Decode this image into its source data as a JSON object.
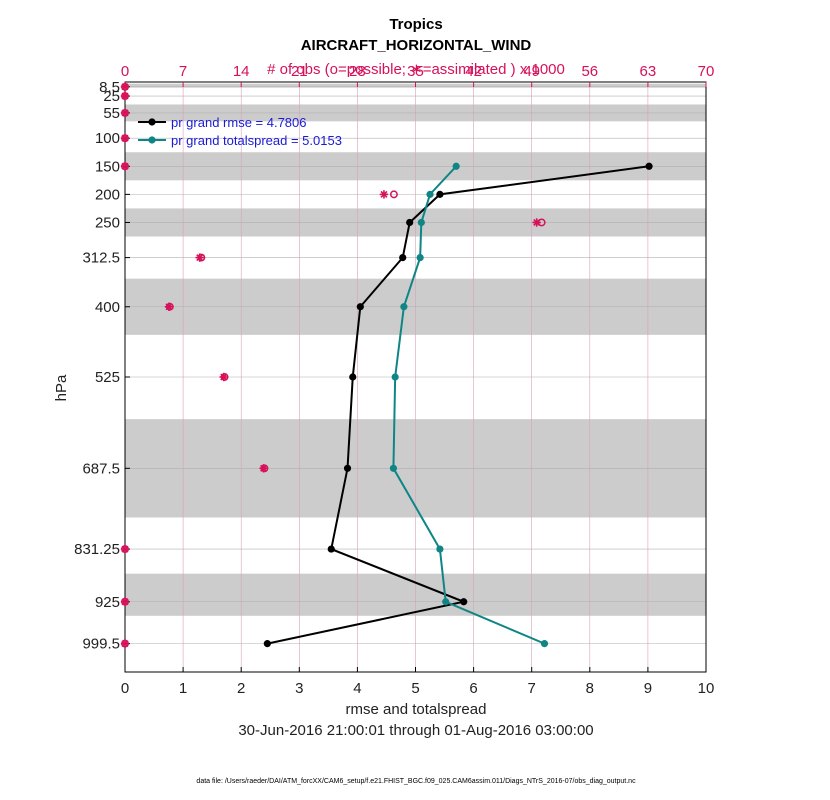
{
  "chart_data": {
    "type": "line",
    "title": "Tropics",
    "subtitle": "AIRCRAFT_HORIZONTAL_WIND",
    "top_axis_label": "# of obs (o=possible; ∗=assimilated ) x 1000",
    "xlabel": "rmse and totalspread",
    "ylabel": "hPa",
    "date_range": "30-Jun-2016 21:00:01 through 01-Aug-2016 03:00:00",
    "footnote": "data file: /Users/raeder/DAI/ATM_forcXX/CAM6_setup/f.e21.FHIST_BGC.f09_025.CAM6assim.011/Diags_NTrS_2016-07/obs_diag_output.nc",
    "xlim": [
      0,
      10
    ],
    "xticks": [
      0,
      1,
      2,
      3,
      4,
      5,
      6,
      7,
      8,
      9,
      10
    ],
    "top_xlim": [
      0,
      70
    ],
    "top_xticks": [
      0,
      7,
      14,
      21,
      28,
      35,
      42,
      49,
      56,
      63,
      70
    ],
    "yticks": [
      "8.5",
      "25",
      "55",
      "100",
      "150",
      "200",
      "250",
      "312.5",
      "400",
      "525",
      "687.5",
      "831.25",
      "925",
      "999.5"
    ],
    "levels": [
      8.5,
      25,
      55,
      100,
      150,
      200,
      250,
      312.5,
      400,
      525,
      687.5,
      831.25,
      925,
      999.5
    ],
    "shaded_bands": [
      [
        3,
        10
      ],
      [
        40,
        70
      ],
      [
        125,
        175
      ],
      [
        225,
        275
      ],
      [
        350,
        450
      ],
      [
        600,
        775
      ],
      [
        875,
        950
      ]
    ],
    "grid": true,
    "legend_position": "top-left",
    "series": [
      {
        "name": "pr grand rmse = 4.7806",
        "color": "#000000",
        "levels": [
          150,
          200,
          250,
          312.5,
          400,
          525,
          687.5,
          831.25,
          925,
          999.5
        ],
        "values": [
          9.02,
          5.42,
          4.9,
          4.78,
          4.05,
          3.92,
          3.83,
          3.55,
          5.83,
          2.45
        ]
      },
      {
        "name": "pr grand totalspread = 5.0153",
        "color": "#0f8585",
        "levels": [
          150,
          200,
          250,
          312.5,
          400,
          525,
          687.5,
          831.25,
          925,
          999.5
        ],
        "values": [
          5.7,
          5.25,
          5.1,
          5.08,
          4.8,
          4.65,
          4.62,
          5.42,
          5.52,
          7.22
        ]
      }
    ],
    "obs_counts": {
      "color": "#d6115a",
      "possible": [
        {
          "level": 8.5,
          "count": 0
        },
        {
          "level": 25,
          "count": 0
        },
        {
          "level": 55,
          "count": 0
        },
        {
          "level": 100,
          "count": 0
        },
        {
          "level": 150,
          "count": 0
        },
        {
          "level": 200,
          "count": 32.4
        },
        {
          "level": 250,
          "count": 50.2
        },
        {
          "level": 312.5,
          "count": 9.2
        },
        {
          "level": 400,
          "count": 5.4
        },
        {
          "level": 525,
          "count": 12.0
        },
        {
          "level": 687.5,
          "count": 16.8
        },
        {
          "level": 831.25,
          "count": 0
        },
        {
          "level": 925,
          "count": 0
        },
        {
          "level": 999.5,
          "count": 0
        }
      ],
      "assimilated": [
        {
          "level": 8.5,
          "count": 0
        },
        {
          "level": 25,
          "count": 0
        },
        {
          "level": 55,
          "count": 0
        },
        {
          "level": 100,
          "count": 0
        },
        {
          "level": 150,
          "count": 0
        },
        {
          "level": 200,
          "count": 31.2
        },
        {
          "level": 250,
          "count": 49.6
        },
        {
          "level": 312.5,
          "count": 9.0
        },
        {
          "level": 400,
          "count": 5.3
        },
        {
          "level": 525,
          "count": 11.9
        },
        {
          "level": 687.5,
          "count": 16.7
        },
        {
          "level": 831.25,
          "count": 0
        },
        {
          "level": 925,
          "count": 0
        },
        {
          "level": 999.5,
          "count": 0
        }
      ]
    }
  }
}
